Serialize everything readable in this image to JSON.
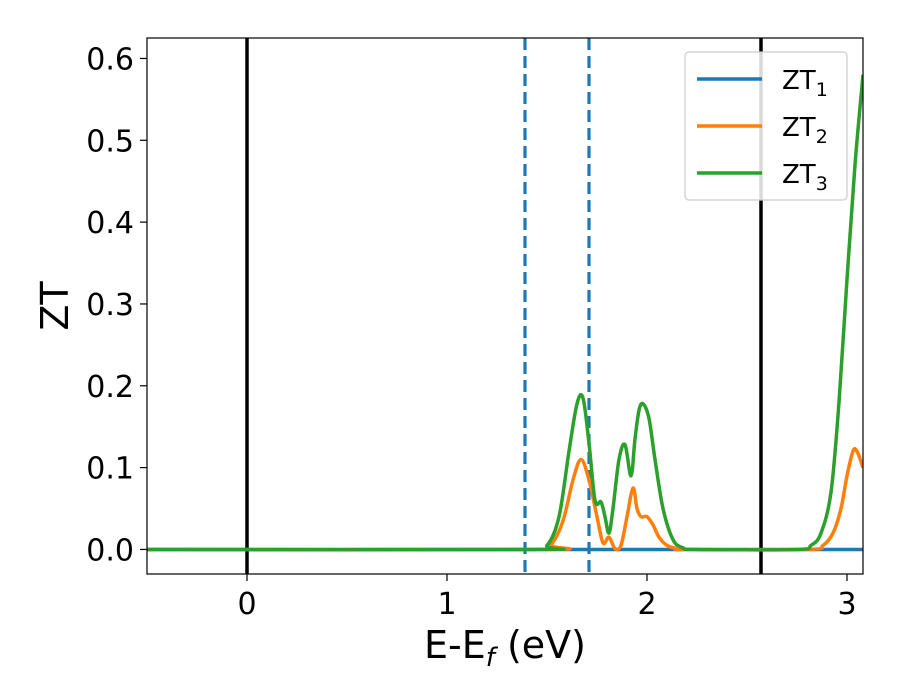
{
  "chart_data": {
    "type": "line",
    "title": "",
    "xlabel": "E-E_f (eV)",
    "ylabel": "ZT",
    "xlim": [
      -0.5,
      3.08
    ],
    "ylim": [
      -0.03,
      0.625
    ],
    "xticks": [
      0,
      1,
      2,
      3
    ],
    "xtick_labels": [
      "0",
      "1",
      "2",
      "3"
    ],
    "yticks": [
      0.0,
      0.1,
      0.2,
      0.3,
      0.4,
      0.5,
      0.6
    ],
    "ytick_labels": [
      "0.0",
      "0.1",
      "0.2",
      "0.3",
      "0.4",
      "0.5",
      "0.6"
    ],
    "grid": false,
    "legend_position": "top-right",
    "vertical_lines": [
      {
        "x": 0.0,
        "style": "solid",
        "color": "#000000"
      },
      {
        "x": 1.39,
        "style": "dashed",
        "color": "#1f77b4"
      },
      {
        "x": 1.71,
        "style": "dashed",
        "color": "#1f77b4"
      },
      {
        "x": 2.57,
        "style": "solid",
        "color": "#000000"
      }
    ],
    "series": [
      {
        "name": "ZT",
        "subscript": "1",
        "color": "#1f77b4",
        "x": [
          -0.5,
          3.08
        ],
        "y": [
          0.0,
          0.0
        ]
      },
      {
        "name": "ZT",
        "subscript": "2",
        "color": "#ff7f0e",
        "x": [
          -0.5,
          1.45,
          1.52,
          1.58,
          1.63,
          1.67,
          1.71,
          1.75,
          1.78,
          1.81,
          1.84,
          1.87,
          1.9,
          1.93,
          1.95,
          1.97,
          2.0,
          2.03,
          2.06,
          2.1,
          2.15,
          2.2,
          2.8,
          2.88,
          2.93,
          2.97,
          3.0,
          3.03,
          3.05,
          3.08
        ],
        "y": [
          0.0,
          0.0,
          0.006,
          0.035,
          0.085,
          0.11,
          0.085,
          0.04,
          0.008,
          0.015,
          0.001,
          0.005,
          0.04,
          0.075,
          0.05,
          0.04,
          0.04,
          0.03,
          0.015,
          0.005,
          0.001,
          0.0,
          0.0,
          0.005,
          0.02,
          0.05,
          0.09,
          0.12,
          0.12,
          0.1
        ]
      },
      {
        "name": "ZT",
        "subscript": "3",
        "color": "#2ca02c",
        "x": [
          -0.5,
          1.42,
          1.5,
          1.56,
          1.61,
          1.65,
          1.68,
          1.71,
          1.74,
          1.77,
          1.79,
          1.81,
          1.83,
          1.86,
          1.89,
          1.92,
          1.94,
          1.96,
          1.98,
          2.01,
          2.04,
          2.08,
          2.13,
          2.18,
          2.25,
          2.75,
          2.82,
          2.87,
          2.92,
          2.96,
          3.0,
          3.04,
          3.08
        ],
        "y": [
          0.0,
          0.0,
          0.005,
          0.04,
          0.12,
          0.178,
          0.185,
          0.13,
          0.06,
          0.058,
          0.04,
          0.02,
          0.05,
          0.11,
          0.128,
          0.09,
          0.135,
          0.17,
          0.178,
          0.16,
          0.11,
          0.05,
          0.012,
          0.002,
          0.0,
          0.0,
          0.005,
          0.02,
          0.07,
          0.18,
          0.33,
          0.47,
          0.58
        ]
      }
    ]
  }
}
